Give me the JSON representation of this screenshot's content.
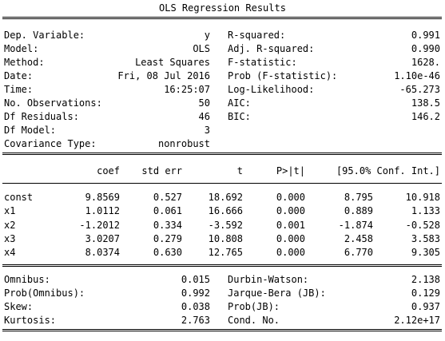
{
  "title": "OLS Regression Results",
  "summary_left": [
    {
      "label": "Dep. Variable:",
      "value": "y"
    },
    {
      "label": "Model:",
      "value": "OLS"
    },
    {
      "label": "Method:",
      "value": "Least Squares"
    },
    {
      "label": "Date:",
      "value": "Fri, 08 Jul 2016"
    },
    {
      "label": "Time:",
      "value": "16:25:07"
    },
    {
      "label": "No. Observations:",
      "value": "50"
    },
    {
      "label": "Df Residuals:",
      "value": "46"
    },
    {
      "label": "Df Model:",
      "value": "3"
    },
    {
      "label": "Covariance Type:",
      "value": "nonrobust"
    }
  ],
  "summary_right": [
    {
      "label": "R-squared:",
      "value": "0.991"
    },
    {
      "label": "Adj. R-squared:",
      "value": "0.990"
    },
    {
      "label": "F-statistic:",
      "value": "1628."
    },
    {
      "label": "Prob (F-statistic):",
      "value": "1.10e-46"
    },
    {
      "label": "Log-Likelihood:",
      "value": "-65.273"
    },
    {
      "label": "AIC:",
      "value": "138.5"
    },
    {
      "label": "BIC:",
      "value": "146.2"
    }
  ],
  "coef_headers": [
    "coef",
    "std err",
    "t",
    "P>|t|",
    "[95.0% Conf. Int.]"
  ],
  "coef_rows": [
    {
      "name": "const",
      "coef": "9.8569",
      "stderr": "0.527",
      "t": "18.692",
      "p": "0.000",
      "lo": "8.795",
      "hi": "10.918"
    },
    {
      "name": "x1",
      "coef": "1.0112",
      "stderr": "0.061",
      "t": "16.666",
      "p": "0.000",
      "lo": "0.889",
      "hi": "1.133"
    },
    {
      "name": "x2",
      "coef": "-1.2012",
      "stderr": "0.334",
      "t": "-3.592",
      "p": "0.001",
      "lo": "-1.874",
      "hi": "-0.528"
    },
    {
      "name": "x3",
      "coef": "3.0207",
      "stderr": "0.279",
      "t": "10.808",
      "p": "0.000",
      "lo": "2.458",
      "hi": "3.583"
    },
    {
      "name": "x4",
      "coef": "8.0374",
      "stderr": "0.630",
      "t": "12.765",
      "p": "0.000",
      "lo": "6.770",
      "hi": "9.305"
    }
  ],
  "diag_left": [
    {
      "label": "Omnibus:",
      "value": "0.015"
    },
    {
      "label": "Prob(Omnibus):",
      "value": "0.992"
    },
    {
      "label": "Skew:",
      "value": "0.038"
    },
    {
      "label": "Kurtosis:",
      "value": "2.763"
    }
  ],
  "diag_right": [
    {
      "label": "Durbin-Watson:",
      "value": "2.138"
    },
    {
      "label": "Jarque-Bera (JB):",
      "value": "0.129"
    },
    {
      "label": "Prob(JB):",
      "value": "0.937"
    },
    {
      "label": "Cond. No.",
      "value": "2.12e+17"
    }
  ]
}
